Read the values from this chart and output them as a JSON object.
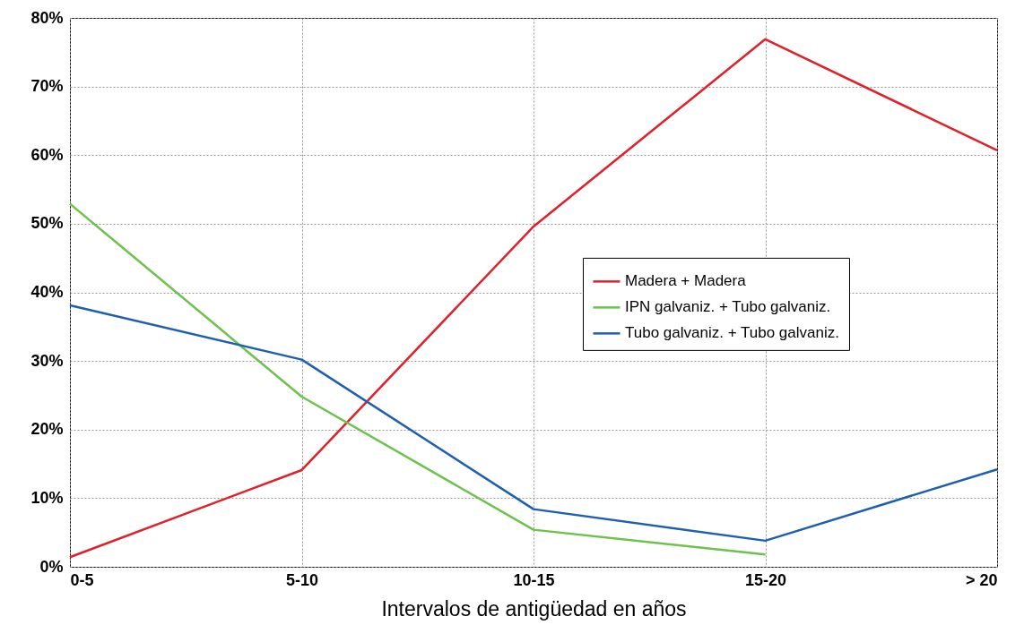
{
  "chart_data": {
    "type": "line",
    "xlabel": "Intervalos de antigüedad en años",
    "categories": [
      "0-5",
      "5-10",
      "10-15",
      "15-20",
      "> 20"
    ],
    "series": [
      {
        "name": "Madera + Madera",
        "color": "#e0202a",
        "values": [
          1.4,
          14.1,
          49.6,
          76.9,
          60.7
        ]
      },
      {
        "name": "IPN galvaniz. + Tubo galvaniz.",
        "color": "#6cc24a",
        "values": [
          52.9,
          24.8,
          5.4,
          1.8,
          null
        ]
      },
      {
        "name": "Tubo galvaniz. + Tubo galvaniz.",
        "color": "#1f5fb0",
        "values": [
          38.1,
          30.2,
          8.4,
          3.8,
          14.2
        ]
      }
    ],
    "ylim": [
      0,
      80
    ],
    "yticks": [
      {
        "value": 0,
        "label": "0%"
      },
      {
        "value": 10,
        "label": "10%"
      },
      {
        "value": 20,
        "label": "20%"
      },
      {
        "value": 30,
        "label": "30%"
      },
      {
        "value": 40,
        "label": "40%"
      },
      {
        "value": 50,
        "label": "50%"
      },
      {
        "value": 60,
        "label": "60%"
      },
      {
        "value": 70,
        "label": "70%"
      },
      {
        "value": 80,
        "label": "80%"
      }
    ],
    "grid": true,
    "legend": "right"
  }
}
